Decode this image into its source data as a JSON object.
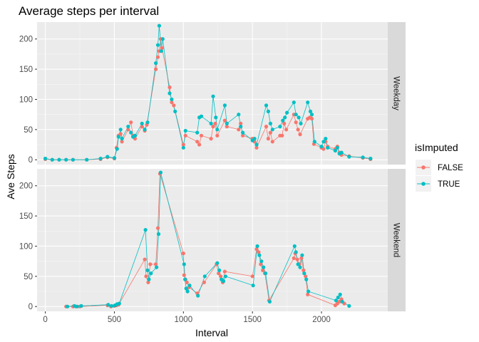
{
  "chart_data": {
    "type": "line",
    "title": "Average steps per interval",
    "xlabel": "Interval",
    "ylabel": "Ave Steps",
    "xlim": [
      -60,
      2480
    ],
    "ylim": [
      -8,
      228
    ],
    "x_ticks": [
      "0",
      "500",
      "1000",
      "1500",
      "2000"
    ],
    "y_ticks": [
      "0",
      "50",
      "100",
      "150",
      "200"
    ],
    "grid": true,
    "legend": {
      "title": "isImputed",
      "placement": "right"
    },
    "series_styles": [
      {
        "name": "FALSE",
        "color": "#F8766D"
      },
      {
        "name": "TRUE",
        "color": "#00BFC4"
      }
    ],
    "panels": [
      {
        "label": "Weekday",
        "series": [
          {
            "name": "FALSE",
            "x": [
              0,
              50,
              100,
              150,
              200,
              300,
              400,
              450,
              500,
              515,
              530,
              545,
              555,
              600,
              620,
              635,
              650,
              700,
              720,
              735,
              800,
              815,
              825,
              835,
              845,
              900,
              915,
              930,
              1000,
              1015,
              1100,
              1115,
              1130,
              1200,
              1215,
              1230,
              1245,
              1300,
              1315,
              1400,
              1415,
              1430,
              1500,
              1515,
              1530,
              1600,
              1615,
              1630,
              1645,
              1700,
              1715,
              1730,
              1745,
              1800,
              1815,
              1830,
              1845,
              1900,
              1915,
              1930,
              1945,
              2000,
              2015,
              2030,
              2045,
              2100,
              2115,
              2130,
              2145,
              2200,
              2300,
              2355
            ],
            "y": [
              1,
              0,
              0,
              0,
              0,
              0,
              1,
              4,
              2,
              20,
              40,
              43,
              30,
              50,
              62,
              40,
              35,
              55,
              48,
              58,
              150,
              170,
              180,
              200,
              185,
              120,
              95,
              90,
              25,
              40,
              30,
              25,
              40,
              35,
              55,
              60,
              40,
              65,
              55,
              50,
              60,
              40,
              35,
              30,
              20,
              55,
              35,
              45,
              30,
              40,
              40,
              60,
              50,
              75,
              62,
              50,
              42,
              68,
              70,
              68,
              26,
              20,
              18,
              30,
              22,
              18,
              22,
              12,
              8,
              6,
              3,
              1
            ]
          },
          {
            "name": "TRUE",
            "x": [
              0,
              50,
              100,
              150,
              200,
              300,
              400,
              450,
              500,
              520,
              530,
              545,
              555,
              600,
              620,
              635,
              650,
              700,
              720,
              740,
              800,
              815,
              825,
              840,
              850,
              900,
              915,
              940,
              1000,
              1015,
              1100,
              1115,
              1130,
              1200,
              1215,
              1235,
              1245,
              1300,
              1315,
              1400,
              1415,
              1430,
              1500,
              1515,
              1530,
              1600,
              1615,
              1630,
              1645,
              1700,
              1720,
              1735,
              1750,
              1800,
              1815,
              1835,
              1850,
              1900,
              1920,
              1930,
              1950,
              2000,
              2015,
              2030,
              2045,
              2100,
              2115,
              2130,
              2145,
              2200,
              2300,
              2355
            ],
            "y": [
              2,
              0,
              0,
              0,
              0,
              0,
              2,
              5,
              3,
              18,
              38,
              50,
              35,
              55,
              45,
              38,
              40,
              60,
              50,
              62,
              160,
              190,
              222,
              180,
              200,
              110,
              100,
              80,
              20,
              48,
              45,
              70,
              72,
              60,
              105,
              70,
              50,
              90,
              60,
              75,
              55,
              45,
              32,
              35,
              25,
              90,
              80,
              60,
              50,
              55,
              65,
              70,
              78,
              95,
              75,
              70,
              60,
              95,
              80,
              75,
              30,
              22,
              30,
              35,
              20,
              15,
              20,
              10,
              12,
              5,
              4,
              2
            ]
          }
        ]
      },
      {
        "label": "Weekend",
        "series": [
          {
            "name": "FALSE",
            "x": [
              150,
              200,
              220,
              250,
              450,
              475,
              500,
              515,
              530,
              720,
              730,
              745,
              760,
              800,
              815,
              830,
              1000,
              1005,
              1015,
              1025,
              1040,
              1100,
              1150,
              1240,
              1255,
              1270,
              1285,
              1300,
              1500,
              1530,
              1545,
              1560,
              1575,
              1590,
              1620,
              1800,
              1810,
              1825,
              1840,
              1855,
              1870,
              1885,
              1900,
              2100,
              2115,
              2130,
              2145,
              2165
            ],
            "y": [
              0,
              0,
              0,
              0,
              2,
              0,
              1,
              2,
              3,
              78,
              50,
              40,
              70,
              70,
              130,
              220,
              88,
              52,
              45,
              40,
              32,
              22,
              40,
              70,
              55,
              50,
              40,
              58,
              50,
              95,
              90,
              70,
              60,
              55,
              10,
              80,
              88,
              78,
              70,
              80,
              60,
              50,
              20,
              2,
              5,
              8,
              12,
              5
            ]
          },
          {
            "name": "TRUE",
            "x": [
              160,
              210,
              230,
              260,
              455,
              480,
              505,
              520,
              535,
              725,
              740,
              750,
              765,
              805,
              820,
              835,
              1005,
              1012,
              1020,
              1030,
              1045,
              1105,
              1155,
              1245,
              1260,
              1275,
              1290,
              1305,
              1505,
              1535,
              1550,
              1565,
              1580,
              1595,
              1625,
              1805,
              1815,
              1830,
              1845,
              1860,
              1875,
              1890,
              1905,
              2105,
              2120,
              2135,
              2150,
              2200
            ],
            "y": [
              0,
              1,
              0,
              1,
              3,
              1,
              2,
              4,
              5,
              127,
              60,
              45,
              55,
              65,
              120,
              222,
              70,
              45,
              30,
              25,
              35,
              18,
              50,
              72,
              60,
              45,
              42,
              50,
              35,
              100,
              85,
              75,
              65,
              55,
              8,
              100,
              90,
              70,
              65,
              85,
              55,
              45,
              25,
              10,
              15,
              20,
              8,
              1
            ]
          }
        ]
      }
    ]
  }
}
